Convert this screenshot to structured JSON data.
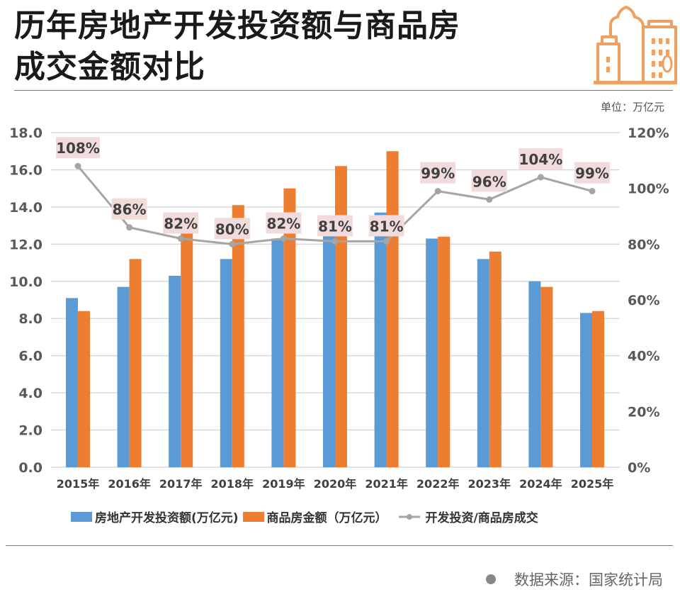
{
  "header": {
    "title_line1": "历年房地产开发投资额与商品房",
    "title_line2": "成交金额对比",
    "icon": "city-buildings-icon",
    "unit": "单位：万亿元"
  },
  "chart_data": {
    "type": "bar",
    "categories": [
      "2015年",
      "2016年",
      "2017年",
      "2018年",
      "2019年",
      "2020年",
      "2021年",
      "2022年",
      "2023年",
      "2024年",
      "2025年"
    ],
    "series": [
      {
        "name": "房地产开发投资额(万亿元)",
        "type": "bar",
        "axis": "left",
        "color": "#5b9bd5",
        "values": [
          9.1,
          9.7,
          10.3,
          11.2,
          12.3,
          13.2,
          13.7,
          12.3,
          11.2,
          10.0,
          8.3
        ]
      },
      {
        "name": "商品房金额（万亿元）",
        "type": "bar",
        "axis": "left",
        "color": "#ed7d31",
        "values": [
          8.4,
          11.2,
          12.6,
          14.1,
          15.0,
          16.2,
          17.0,
          12.4,
          11.6,
          9.7,
          8.4
        ]
      },
      {
        "name": "开发投资/商品房成交",
        "type": "line",
        "axis": "right",
        "color": "#a5a5a5",
        "values": [
          108,
          86,
          82,
          80,
          82,
          81,
          81,
          99,
          96,
          104,
          99
        ],
        "labels": [
          "108%",
          "86%",
          "82%",
          "80%",
          "82%",
          "81%",
          "81%",
          "99%",
          "96%",
          "104%",
          "99%"
        ]
      }
    ],
    "ylim": [
      0,
      18
    ],
    "yticks": [
      "0.0",
      "2.0",
      "4.0",
      "6.0",
      "8.0",
      "10.0",
      "12.0",
      "14.0",
      "16.0",
      "18.0"
    ],
    "y2lim": [
      0,
      120
    ],
    "y2ticks": [
      "0%",
      "20%",
      "40%",
      "60%",
      "80%",
      "100%",
      "120%"
    ],
    "grid": true,
    "legend": "bottom"
  },
  "footer": {
    "source": "数据来源：国家统计局"
  }
}
